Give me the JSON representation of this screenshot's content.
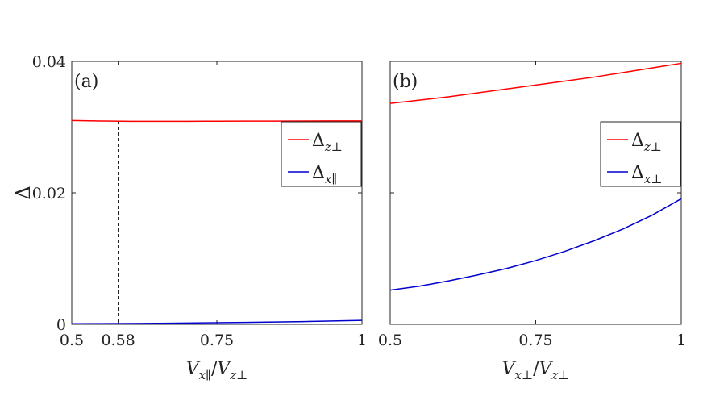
{
  "chart_data": [
    {
      "type": "line",
      "panel_label": "(a)",
      "xlabel": "V_{x∥}/V_{z⊥}",
      "xlabel_parts": {
        "main1": "V",
        "sub1": "x∥",
        "slash": "/",
        "main2": "V",
        "sub2": "z⊥"
      },
      "ylabel": "Δ",
      "xlim": [
        0.5,
        1.0
      ],
      "ylim": [
        0,
        0.04
      ],
      "xticks": [
        0.5,
        0.58,
        0.75,
        1.0
      ],
      "xtick_labels": [
        "0.5",
        "0.58",
        "0.75",
        "1"
      ],
      "yticks": [
        0,
        0.02,
        0.04
      ],
      "ytick_labels": [
        "0",
        "0.02",
        "0.04"
      ],
      "vline": 0.58,
      "legend_position": "upper-right",
      "grid": false,
      "series": [
        {
          "name": "Δ_{z⊥}",
          "label_main": "Δ",
          "label_sub": "z⊥",
          "color": "#ff0000",
          "x": [
            0.5,
            0.55,
            0.6,
            0.65,
            0.7,
            0.75,
            0.8,
            0.85,
            0.9,
            0.95,
            1.0
          ],
          "y": [
            0.031,
            0.03092,
            0.03088,
            0.03087,
            0.03088,
            0.03089,
            0.0309,
            0.03091,
            0.03092,
            0.03093,
            0.03094
          ]
        },
        {
          "name": "Δ_{x∥}",
          "label_main": "Δ",
          "label_sub": "x∥",
          "color": "#0000cc",
          "x": [
            0.5,
            0.55,
            0.6,
            0.65,
            0.7,
            0.75,
            0.8,
            0.85,
            0.9,
            0.95,
            1.0
          ],
          "y": [
            0.0001,
            0.00011,
            0.00013,
            0.00016,
            0.0002,
            0.00024,
            0.00029,
            0.00035,
            0.00042,
            0.0005,
            0.0006
          ]
        }
      ]
    },
    {
      "type": "line",
      "panel_label": "(b)",
      "xlabel": "V_{x⊥}/V_{z⊥}",
      "xlabel_parts": {
        "main1": "V",
        "sub1": "x⊥",
        "slash": "/",
        "main2": "V",
        "sub2": "z⊥"
      },
      "ylabel": "",
      "xlim": [
        0.5,
        1.0
      ],
      "ylim": [
        0,
        0.04
      ],
      "xticks": [
        0.5,
        0.75,
        1.0
      ],
      "xtick_labels": [
        "0.5",
        "0.75",
        "1"
      ],
      "yticks": [
        0,
        0.02,
        0.04
      ],
      "ytick_labels": [
        "",
        "",
        ""
      ],
      "legend_position": "upper-right",
      "grid": false,
      "series": [
        {
          "name": "Δ_{z⊥}",
          "label_main": "Δ",
          "label_sub": "z⊥",
          "color": "#ff0000",
          "x": [
            0.5,
            0.55,
            0.6,
            0.65,
            0.7,
            0.75,
            0.8,
            0.85,
            0.9,
            0.95,
            1.0
          ],
          "y": [
            0.0336,
            0.0341,
            0.0346,
            0.0352,
            0.0358,
            0.0364,
            0.037,
            0.0376,
            0.0383,
            0.039,
            0.0397
          ]
        },
        {
          "name": "Δ_{x⊥}",
          "label_main": "Δ",
          "label_sub": "x⊥",
          "color": "#0000cc",
          "x": [
            0.5,
            0.55,
            0.6,
            0.65,
            0.7,
            0.75,
            0.8,
            0.85,
            0.9,
            0.95,
            1.0
          ],
          "y": [
            0.0052,
            0.0058,
            0.0066,
            0.0075,
            0.0085,
            0.0097,
            0.0111,
            0.0127,
            0.0145,
            0.0166,
            0.0191
          ]
        }
      ]
    }
  ]
}
